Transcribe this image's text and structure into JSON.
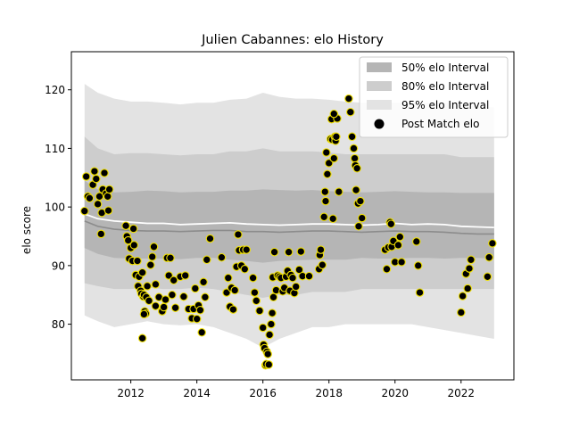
{
  "chart_data": {
    "type": "scatter",
    "title": "Julien Cabannes: elo History",
    "xlabel": "",
    "ylabel": "elo score",
    "xlim": [
      2010.2,
      2023.6
    ],
    "ylim": [
      70.5,
      126.5
    ],
    "x_ticks": [
      2012,
      2014,
      2016,
      2018,
      2020,
      2022
    ],
    "y_ticks": [
      80,
      90,
      100,
      110,
      120
    ],
    "legend": {
      "position": "top-right",
      "entries": [
        "50% elo Interval",
        "80% elo Interval",
        "95% elo Interval",
        "Post Match elo"
      ]
    },
    "colors": {
      "band_50": "#b5b5b5",
      "band_80": "#cdcdcd",
      "band_95": "#e3e3e3",
      "mean_line": "#ffffff",
      "median_line": "#8c8c8c",
      "point_fill": "#000000",
      "point_edge": "#f0e000"
    },
    "bands": {
      "x": [
        2010.6,
        2011.0,
        2011.5,
        2012.0,
        2012.5,
        2013.0,
        2013.5,
        2014.0,
        2014.5,
        2015.0,
        2015.5,
        2016.0,
        2016.5,
        2017.0,
        2017.5,
        2018.0,
        2018.5,
        2019.0,
        2019.5,
        2020.0,
        2020.5,
        2021.0,
        2021.5,
        2022.0,
        2022.5,
        2023.0
      ],
      "mean": [
        98.8,
        98.0,
        97.6,
        97.4,
        97.2,
        97.2,
        97.0,
        97.1,
        97.2,
        97.3,
        97.1,
        97.0,
        96.9,
        97.0,
        97.1,
        97.1,
        97.0,
        96.9,
        97.0,
        97.2,
        97.0,
        97.1,
        97.0,
        96.7,
        96.6,
        96.5
      ],
      "median": [
        97.6,
        96.7,
        96.2,
        96.0,
        95.9,
        95.9,
        95.8,
        95.9,
        96.0,
        96.0,
        95.8,
        95.8,
        95.7,
        95.8,
        95.9,
        95.9,
        95.8,
        95.7,
        95.8,
        95.9,
        95.8,
        95.8,
        95.7,
        95.5,
        95.4,
        95.4
      ],
      "p50_lo": [
        93.0,
        92.0,
        91.3,
        91.2,
        91.2,
        91.2,
        91.1,
        91.3,
        91.3,
        91.0,
        90.8,
        90.5,
        90.8,
        90.9,
        91.0,
        91.0,
        91.0,
        91.3,
        91.2,
        91.2,
        91.3,
        91.3,
        91.2,
        91.3,
        91.3,
        91.2
      ],
      "p50_hi": [
        104.5,
        103.0,
        102.5,
        102.6,
        102.8,
        102.7,
        102.5,
        102.6,
        102.6,
        102.8,
        102.8,
        103.0,
        102.9,
        102.8,
        102.9,
        102.7,
        102.6,
        102.5,
        102.6,
        102.7,
        102.6,
        102.5,
        102.5,
        102.4,
        102.4,
        102.4
      ],
      "p80_lo": [
        87.0,
        86.5,
        86.0,
        86.0,
        86.2,
        86.0,
        86.0,
        86.2,
        86.0,
        85.5,
        85.0,
        84.5,
        85.0,
        85.0,
        85.5,
        85.5,
        85.5,
        86.0,
        86.0,
        86.0,
        86.0,
        86.0,
        86.0,
        86.0,
        86.0,
        86.0
      ],
      "p80_hi": [
        112.0,
        110.0,
        109.0,
        109.2,
        109.2,
        109.0,
        108.8,
        109.0,
        109.0,
        109.5,
        109.5,
        110.0,
        109.5,
        109.5,
        109.5,
        109.3,
        109.0,
        109.0,
        109.0,
        109.0,
        109.0,
        109.0,
        109.0,
        108.5,
        108.5,
        108.5
      ],
      "p95_lo": [
        81.5,
        80.5,
        79.5,
        80.0,
        80.5,
        80.0,
        79.8,
        80.0,
        79.5,
        78.5,
        77.5,
        76.0,
        77.5,
        78.5,
        79.5,
        79.5,
        80.0,
        80.0,
        80.0,
        80.0,
        80.0,
        79.5,
        79.0,
        78.5,
        78.0,
        77.5
      ],
      "p95_hi": [
        121.0,
        119.5,
        118.5,
        118.0,
        118.0,
        117.8,
        117.5,
        117.8,
        117.8,
        118.3,
        118.5,
        119.5,
        118.8,
        118.5,
        118.5,
        118.3,
        118.0,
        117.8,
        117.8,
        117.8,
        117.8,
        117.8,
        117.8,
        117.5,
        117.2,
        117.0
      ]
    },
    "points": [
      [
        2010.6,
        99.3
      ],
      [
        2010.65,
        105.2
      ],
      [
        2010.7,
        101.8
      ],
      [
        2010.75,
        101.5
      ],
      [
        2010.85,
        103.8
      ],
      [
        2010.9,
        106.1
      ],
      [
        2010.95,
        104.8
      ],
      [
        2011.0,
        100.5
      ],
      [
        2011.05,
        101.8
      ],
      [
        2011.1,
        95.4
      ],
      [
        2011.12,
        99.0
      ],
      [
        2011.15,
        103.0
      ],
      [
        2011.2,
        105.8
      ],
      [
        2011.25,
        102.3
      ],
      [
        2011.3,
        101.8
      ],
      [
        2011.32,
        99.4
      ],
      [
        2011.35,
        103.0
      ],
      [
        2011.85,
        96.8
      ],
      [
        2011.88,
        95.0
      ],
      [
        2011.92,
        94.3
      ],
      [
        2011.95,
        91.2
      ],
      [
        2012.0,
        93.0
      ],
      [
        2012.05,
        90.8
      ],
      [
        2012.08,
        96.3
      ],
      [
        2012.1,
        93.5
      ],
      [
        2012.15,
        88.4
      ],
      [
        2012.2,
        90.8
      ],
      [
        2012.22,
        86.5
      ],
      [
        2012.25,
        88.1
      ],
      [
        2012.3,
        85.7
      ],
      [
        2012.32,
        85.2
      ],
      [
        2012.35,
        88.8
      ],
      [
        2012.38,
        84.7
      ],
      [
        2012.4,
        85.0
      ],
      [
        2012.42,
        82.2
      ],
      [
        2012.45,
        81.8
      ],
      [
        2012.47,
        84.6
      ],
      [
        2012.5,
        86.5
      ],
      [
        2012.6,
        90.1
      ],
      [
        2012.65,
        91.5
      ],
      [
        2012.7,
        93.2
      ],
      [
        2012.75,
        86.8
      ],
      [
        2012.35,
        77.6
      ],
      [
        2012.4,
        81.7
      ],
      [
        2012.55,
        84.0
      ],
      [
        2012.75,
        83.1
      ],
      [
        2012.85,
        84.6
      ],
      [
        2012.95,
        82.2
      ],
      [
        2013.0,
        82.9
      ],
      [
        2013.05,
        84.2
      ],
      [
        2013.1,
        91.3
      ],
      [
        2013.15,
        88.3
      ],
      [
        2013.2,
        91.3
      ],
      [
        2013.25,
        85.0
      ],
      [
        2013.3,
        87.5
      ],
      [
        2013.35,
        82.8
      ],
      [
        2013.5,
        88.1
      ],
      [
        2013.6,
        84.7
      ],
      [
        2013.65,
        88.3
      ],
      [
        2013.75,
        82.6
      ],
      [
        2013.85,
        81.0
      ],
      [
        2013.9,
        82.6
      ],
      [
        2013.95,
        86.1
      ],
      [
        2014.0,
        80.9
      ],
      [
        2014.05,
        83.2
      ],
      [
        2014.1,
        82.4
      ],
      [
        2014.15,
        78.6
      ],
      [
        2014.2,
        87.2
      ],
      [
        2014.25,
        84.6
      ],
      [
        2014.3,
        91.0
      ],
      [
        2014.4,
        94.6
      ],
      [
        2014.75,
        91.4
      ],
      [
        2014.9,
        85.4
      ],
      [
        2014.95,
        87.9
      ],
      [
        2015.0,
        83.0
      ],
      [
        2015.05,
        86.2
      ],
      [
        2015.1,
        82.5
      ],
      [
        2015.15,
        85.8
      ],
      [
        2015.2,
        89.8
      ],
      [
        2015.25,
        95.3
      ],
      [
        2015.28,
        92.6
      ],
      [
        2015.35,
        90.0
      ],
      [
        2015.4,
        92.7
      ],
      [
        2015.45,
        89.4
      ],
      [
        2015.5,
        92.7
      ],
      [
        2015.7,
        87.9
      ],
      [
        2015.75,
        85.4
      ],
      [
        2015.8,
        84.0
      ],
      [
        2015.9,
        82.3
      ],
      [
        2016.0,
        79.4
      ],
      [
        2016.02,
        76.5
      ],
      [
        2016.05,
        75.9
      ],
      [
        2016.08,
        73.0
      ],
      [
        2016.1,
        73.2
      ],
      [
        2016.12,
        75.3
      ],
      [
        2016.15,
        74.9
      ],
      [
        2016.18,
        73.1
      ],
      [
        2016.2,
        78.2
      ],
      [
        2016.25,
        80.0
      ],
      [
        2016.28,
        81.9
      ],
      [
        2016.3,
        88.0
      ],
      [
        2016.32,
        84.6
      ],
      [
        2016.35,
        92.3
      ],
      [
        2016.4,
        85.8
      ],
      [
        2016.45,
        88.3
      ],
      [
        2016.5,
        88.1
      ],
      [
        2016.55,
        87.9
      ],
      [
        2016.6,
        85.6
      ],
      [
        2016.65,
        86.2
      ],
      [
        2016.7,
        88.1
      ],
      [
        2016.75,
        89.1
      ],
      [
        2016.78,
        92.3
      ],
      [
        2016.82,
        85.7
      ],
      [
        2016.85,
        88.4
      ],
      [
        2016.9,
        87.9
      ],
      [
        2016.95,
        85.3
      ],
      [
        2017.0,
        86.4
      ],
      [
        2017.1,
        89.3
      ],
      [
        2017.15,
        92.4
      ],
      [
        2017.2,
        88.2
      ],
      [
        2017.4,
        88.2
      ],
      [
        2017.7,
        89.4
      ],
      [
        2017.72,
        91.8
      ],
      [
        2017.75,
        92.7
      ],
      [
        2017.8,
        90.1
      ],
      [
        2017.85,
        98.3
      ],
      [
        2017.88,
        102.6
      ],
      [
        2017.9,
        101.0
      ],
      [
        2017.92,
        109.3
      ],
      [
        2017.95,
        105.6
      ],
      [
        2018.0,
        107.5
      ],
      [
        2018.05,
        111.6
      ],
      [
        2018.08,
        115.0
      ],
      [
        2018.1,
        111.5
      ],
      [
        2018.12,
        98.0
      ],
      [
        2018.15,
        108.3
      ],
      [
        2018.18,
        112.0
      ],
      [
        2018.2,
        111.3
      ],
      [
        2018.22,
        112.0
      ],
      [
        2018.25,
        115.1
      ],
      [
        2018.3,
        102.6
      ],
      [
        2018.15,
        115.9
      ],
      [
        2018.6,
        118.5
      ],
      [
        2018.65,
        116.2
      ],
      [
        2018.7,
        112.0
      ],
      [
        2018.75,
        110.0
      ],
      [
        2018.78,
        108.3
      ],
      [
        2018.8,
        107.1
      ],
      [
        2018.82,
        102.9
      ],
      [
        2018.85,
        106.6
      ],
      [
        2018.88,
        100.6
      ],
      [
        2018.9,
        96.7
      ],
      [
        2018.95,
        101.0
      ],
      [
        2019.0,
        98.1
      ],
      [
        2019.7,
        92.7
      ],
      [
        2019.75,
        89.4
      ],
      [
        2019.8,
        93.1
      ],
      [
        2019.85,
        97.4
      ],
      [
        2019.88,
        97.1
      ],
      [
        2019.9,
        93.2
      ],
      [
        2019.95,
        94.2
      ],
      [
        2020.0,
        90.6
      ],
      [
        2020.1,
        93.5
      ],
      [
        2020.15,
        94.9
      ],
      [
        2020.2,
        90.6
      ],
      [
        2020.65,
        94.1
      ],
      [
        2020.7,
        90.0
      ],
      [
        2020.75,
        85.4
      ],
      [
        2022.0,
        82.0
      ],
      [
        2022.05,
        84.8
      ],
      [
        2022.15,
        88.6
      ],
      [
        2022.2,
        86.1
      ],
      [
        2022.25,
        89.5
      ],
      [
        2022.3,
        91.0
      ],
      [
        2022.8,
        88.1
      ],
      [
        2022.85,
        91.4
      ],
      [
        2022.95,
        93.8
      ]
    ]
  }
}
